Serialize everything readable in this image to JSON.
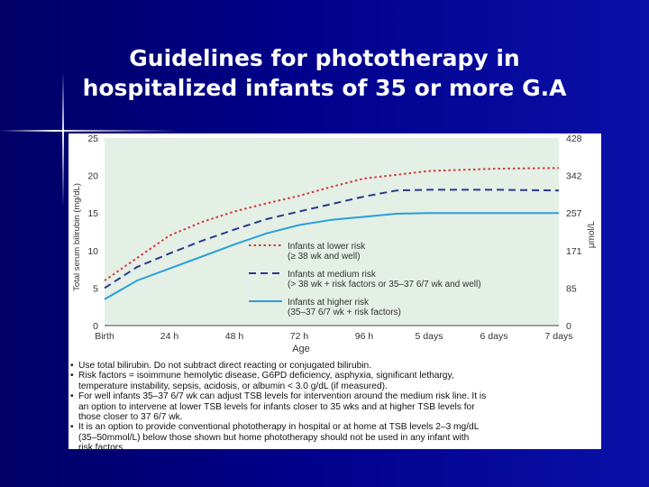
{
  "slide": {
    "title_lines": [
      "Guidelines for phototherapy in",
      "hospitalized infants of 35 or more G.A"
    ]
  },
  "colors": {
    "background": "#00008a",
    "plot_bg": "#e4efe6",
    "lower_risk": "#d23a3a",
    "medium_risk": "#2a3a8c",
    "higher_risk": "#2aa0d8"
  },
  "chart_data": {
    "type": "line",
    "title": "",
    "xlabel": "Age",
    "ylabel": "Total serum bilirubin (mg/dL)",
    "ylabel_right": "μmol/L",
    "categories": [
      "Birth",
      "24 h",
      "48 h",
      "72 h",
      "96 h",
      "5 days",
      "6 days",
      "7 days"
    ],
    "x_hours": [
      0,
      24,
      48,
      72,
      96,
      120,
      144,
      168
    ],
    "ylim": [
      0,
      25
    ],
    "y_ticks": [
      0,
      5,
      10,
      15,
      20,
      25
    ],
    "y_ticks_right": [
      "0",
      "85",
      "171",
      "257",
      "342",
      "428"
    ],
    "grid": false,
    "legend_position": "center-right",
    "series": [
      {
        "name": "Infants at lower risk",
        "name_line2": "(≥ 38 wk and well)",
        "style": "dotted",
        "x": [
          0,
          12,
          24,
          36,
          48,
          60,
          72,
          84,
          96,
          108,
          120,
          144,
          168
        ],
        "y": [
          6,
          9,
          12,
          13.8,
          15.2,
          16.3,
          17.3,
          18.5,
          19.6,
          20.1,
          20.6,
          20.9,
          21
        ]
      },
      {
        "name": "Infants at medium risk",
        "name_line2": "(> 38 wk + risk factors or 35–37 6/7 wk and well)",
        "style": "dashed",
        "x": [
          0,
          12,
          24,
          36,
          48,
          60,
          72,
          84,
          96,
          108,
          120,
          144,
          168
        ],
        "y": [
          5,
          7.8,
          9.6,
          11.3,
          12.8,
          14.2,
          15.2,
          16.2,
          17.2,
          18,
          18.1,
          18.1,
          18
        ]
      },
      {
        "name": "Infants at higher risk",
        "name_line2": "(35–37 6/7 wk + risk factors)",
        "style": "solid",
        "x": [
          0,
          12,
          24,
          36,
          48,
          60,
          72,
          84,
          96,
          108,
          120,
          144,
          168
        ],
        "y": [
          3.5,
          6,
          7.6,
          9.2,
          10.8,
          12.3,
          13.4,
          14.1,
          14.5,
          14.9,
          15,
          15,
          15
        ]
      }
    ]
  },
  "notes": [
    [
      "Use total bilirubin. Do not subtract direct reacting or conjugated bilirubin."
    ],
    [
      "Risk factors = isoimmune hemolytic disease, G6PD deficiency, asphyxia, significant lethargy,",
      "temperature instability, sepsis, acidosis, or albumin < 3.0 g/dL (if measured)."
    ],
    [
      "For well infants 35–37 6/7 wk can adjust TSB levels for intervention around the medium risk line. It is",
      "an option to intervene at lower TSB levels for infants closer to 35 wks and at higher TSB levels for",
      "those closer to 37 6/7 wk."
    ],
    [
      "It is an option to provide conventional phototherapy in hospital or at home at TSB levels 2–3 mg/dL",
      "(35–50mmol/L) below those shown but home phototherapy should not be used in any infant with",
      "risk factors."
    ]
  ]
}
